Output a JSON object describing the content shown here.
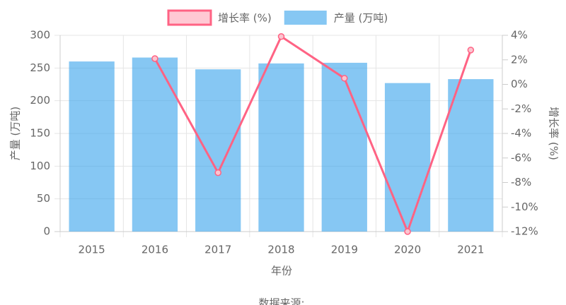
{
  "chart_data": {
    "type": "combo",
    "categories": [
      "2015",
      "2016",
      "2017",
      "2018",
      "2019",
      "2020",
      "2021"
    ],
    "series": [
      {
        "name": "增长率 (%)",
        "type": "line",
        "axis": "y2",
        "color": "#ff6384",
        "values": [
          null,
          2.1,
          -7.2,
          3.9,
          0.5,
          -12,
          2.8
        ]
      },
      {
        "name": "产量 (万吨)",
        "type": "bar",
        "color": "#36a2eb",
        "values": [
          260,
          266,
          248,
          257,
          258,
          227,
          233
        ]
      }
    ],
    "ylim": [
      0,
      300
    ],
    "yticks": [
      0,
      50,
      100,
      150,
      200,
      250,
      300
    ],
    "y2lim": [
      -12,
      4
    ],
    "y2ticks": [
      {
        "value": -12,
        "label": "-12%"
      },
      {
        "value": -10,
        "label": "-10%"
      },
      {
        "value": -8,
        "label": "-8%"
      },
      {
        "value": -6,
        "label": "-6%"
      },
      {
        "value": -4,
        "label": "-4%"
      },
      {
        "value": -2,
        "label": "-2%"
      },
      {
        "value": 0,
        "label": "0%"
      },
      {
        "value": 2,
        "label": "2%"
      },
      {
        "value": 4,
        "label": "4%"
      }
    ],
    "ylabel": "产量 (万吨)",
    "y2label": "增长率 (%)",
    "xlabel": "年份",
    "source": "数据来源:",
    "grid": true
  }
}
